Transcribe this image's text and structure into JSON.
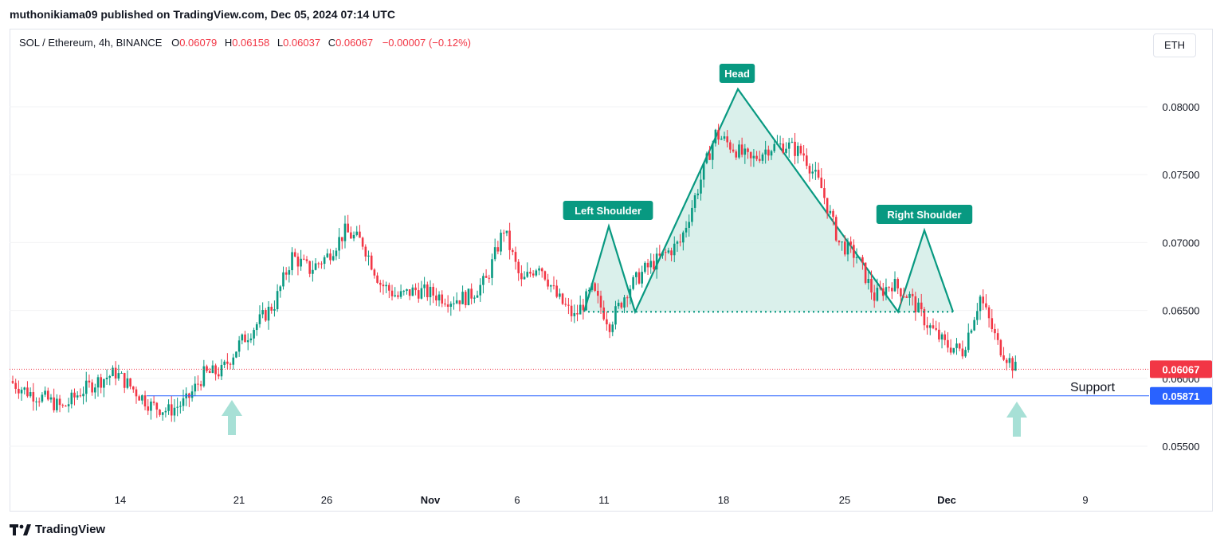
{
  "header": {
    "published_by": "muthonikiama09 published on TradingView.com, Dec 05, 2024 07:14 UTC"
  },
  "legend": {
    "symbol": "SOL / Ethereum, 4h, BINANCE",
    "o_label": "O",
    "o_value": "0.06079",
    "h_label": "H",
    "h_value": "0.06158",
    "l_label": "L",
    "l_value": "0.06037",
    "c_label": "C",
    "c_value": "0.06067",
    "change": "−0.00007 (−0.12%)"
  },
  "currency_button": "ETH",
  "price_tags": {
    "last": "0.06067",
    "support": "0.05871"
  },
  "annotations": {
    "head": "Head",
    "left_shoulder": "Left Shoulder",
    "right_shoulder": "Right Shoulder",
    "support": "Support"
  },
  "footer": {
    "logo_text": "TradingView"
  },
  "colors": {
    "up": "#089981",
    "down": "#f23645",
    "pattern": "#089981",
    "pattern_fill": "#d4ede8",
    "support_line": "#2962ff",
    "arrow": "#a7e0d6"
  },
  "chart_data": {
    "type": "candlestick",
    "title": "SOL / Ethereum, 4h, BINANCE",
    "y_ticks": [
      "0.08000",
      "0.07500",
      "0.07000",
      "0.06500",
      "0.06000",
      "0.05500"
    ],
    "ylim": [
      0.0535,
      0.0857
    ],
    "x_ticks": [
      "14",
      "21",
      "26",
      "Nov",
      "6",
      "11",
      "18",
      "25",
      "Dec",
      "9"
    ],
    "support_level": 0.05871,
    "last_price": 0.06067,
    "neckline": 0.0649,
    "head_shoulders": {
      "left_shoulder_peak": 0.0712,
      "head_peak": 0.0813,
      "right_shoulder_peak": 0.0709
    },
    "series": [
      {
        "name": "SOL/ETH close (approx.)",
        "points": [
          [
            "Oct 9",
            0.0598
          ],
          [
            "Oct 10",
            0.059
          ],
          [
            "Oct 11",
            0.0585
          ],
          [
            "Oct 12",
            0.0578
          ],
          [
            "Oct 13",
            0.059
          ],
          [
            "Oct 14",
            0.0598
          ],
          [
            "Oct 15",
            0.0604
          ],
          [
            "Oct 16",
            0.0592
          ],
          [
            "Oct 17",
            0.058
          ],
          [
            "Oct 18",
            0.0576
          ],
          [
            "Oct 19",
            0.0583
          ],
          [
            "Oct 20",
            0.0603
          ],
          [
            "Oct 21",
            0.0605
          ],
          [
            "Oct 22",
            0.0625
          ],
          [
            "Oct 23",
            0.064
          ],
          [
            "Oct 24",
            0.0655
          ],
          [
            "Oct 25",
            0.069
          ],
          [
            "Oct 26",
            0.068
          ],
          [
            "Oct 27",
            0.069
          ],
          [
            "Oct 28",
            0.0708
          ],
          [
            "Oct 29",
            0.07
          ],
          [
            "Oct 30",
            0.067
          ],
          [
            "Oct 31",
            0.066
          ],
          [
            "Nov 1",
            0.0665
          ],
          [
            "Nov 2",
            0.0662
          ],
          [
            "Nov 3",
            0.0658
          ],
          [
            "Nov 4",
            0.066
          ],
          [
            "Nov 5",
            0.0672
          ],
          [
            "Nov 6",
            0.071
          ],
          [
            "Nov 7",
            0.067
          ],
          [
            "Nov 8",
            0.0685
          ],
          [
            "Nov 9",
            0.066
          ],
          [
            "Nov 10",
            0.0645
          ],
          [
            "Nov 11",
            0.0665
          ],
          [
            "Nov 12",
            0.064
          ],
          [
            "Nov 13",
            0.0665
          ],
          [
            "Nov 14",
            0.068
          ],
          [
            "Nov 15",
            0.069
          ],
          [
            "Nov 16",
            0.07
          ],
          [
            "Nov 17",
            0.074
          ],
          [
            "Nov 18",
            0.078
          ],
          [
            "Nov 19",
            0.077
          ],
          [
            "Nov 20",
            0.076
          ],
          [
            "Nov 21",
            0.077
          ],
          [
            "Nov 22",
            0.0772
          ],
          [
            "Nov 23",
            0.0765
          ],
          [
            "Nov 24",
            0.074
          ],
          [
            "Nov 25",
            0.07
          ],
          [
            "Nov 26",
            0.069
          ],
          [
            "Nov 27",
            0.066
          ],
          [
            "Nov 28",
            0.067
          ],
          [
            "Nov 29",
            0.066
          ],
          [
            "Nov 30",
            0.064
          ],
          [
            "Dec 1",
            0.0625
          ],
          [
            "Dec 2",
            0.062
          ],
          [
            "Dec 3",
            0.066
          ],
          [
            "Dec 4",
            0.0625
          ],
          [
            "Dec 5",
            0.0607
          ]
        ]
      }
    ]
  }
}
